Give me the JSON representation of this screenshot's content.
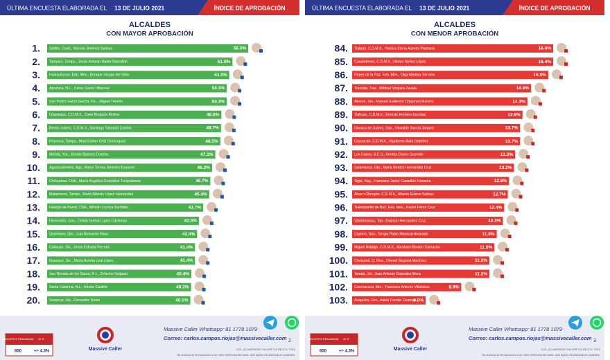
{
  "header": {
    "survey_label": "ÚLTIMA ENCUESTA ELABORADA EL",
    "date": "13 DE JULIO 2021",
    "index_label": "ÍNDICE DE APROBACIÓN"
  },
  "footer": {
    "surveys_label": "ENCUESTAS REALIZADAS",
    "surveys_value": "600",
    "margin_label": "M. E.",
    "margin_value": "+/- 4.3%",
    "brand": "Massive Caller",
    "whatsapp": "Massive Caller Whatsapp: 81 1778 1079",
    "email": "Correo: carlos.campos.riojas@massivecaller.com",
    "copyright": "D.R., (C) MASSIVE CALLER S.A DE C.V., 2021",
    "disclaimer": "Se autoriza la reproducción si se hace referencia del autor, sólo aplica vía electoral al contenido.",
    "pages": [
      "2",
      "3"
    ]
  },
  "chart_data": [
    {
      "type": "bar",
      "orientation": "horizontal",
      "title": "ALCALDES",
      "subtitle": "CON MAYOR APROBACIÓN",
      "color": "#4caf50",
      "ranks": [
        "1.",
        "2.",
        "3.",
        "4.",
        "5.",
        "6.",
        "7.",
        "8.",
        "9.",
        "10.",
        "11.",
        "12.",
        "13.",
        "14.",
        "15.",
        "16.",
        "17.",
        "18.",
        "19.",
        "20."
      ],
      "categories": [
        "Saltillo, Coah., Manolo Jiménez Salinas",
        "Tampico, Tamps., Jesús Antonio Nader Nasrallah",
        "Huixquilucan, Edo. Méx., Enrique Vargas del Villar",
        "Apodaca, N.L., César Garza Villarreal",
        "San Pedro Garza García, N.L., Miguel Treviño",
        "Iztapalapa, C.D.M.X., Clara Brugada Molina",
        "Benito Juárez, C.D.M.X., Santiago Taboada Cortina",
        "Reynosa, Tamps., Maki Esther Ortiz Domínguez",
        "Mérida, Yuc., Renán Barrera Concha",
        "Aguascalientes, Ags., María Teresa Jiménez Esquivel",
        "Chihuahua, Chih., María Angélica Granados Trespalacios",
        "Matamoros, Tamps., Mario Alberto López Hernández",
        "Hidalgo de Parral, Chih., Alfredo Lozoya Santillán",
        "Hermosillo, Son., Célida Teresa López Cárdenas",
        "Querétaro, Qro., Luis Bernardo Nava",
        "Culiacán, Sin., Jesús Estrada Ferreiro",
        "Guasave, Sin., María Aurelia Leal López",
        "San Nicolás de los Garza, N.L., Zeferino Salgado",
        "Santa Catarina, N.L., Héctor Castillo",
        "Veracruz, Ver., Fernando Yunes"
      ],
      "values": [
        56.3,
        51.9,
        51.0,
        50.3,
        50.3,
        48.8,
        48.7,
        48.5,
        47.1,
        46.2,
        45.7,
        45.4,
        43.7,
        42.5,
        42.0,
        41.4,
        41.4,
        40.4,
        40.3,
        40.1
      ],
      "value_labels": [
        "56.3%",
        "51.9%",
        "51.0%",
        "50.3%",
        "50.3%",
        "48.8%",
        "48.7%",
        "48.5%",
        "47.1%",
        "46.2%",
        "45.7%",
        "45.4%",
        "43.7%",
        "42.5%",
        "42.0%",
        "41.4%",
        "41.4%",
        "40.4%",
        "40.3%",
        "40.1%"
      ]
    },
    {
      "type": "bar",
      "orientation": "horizontal",
      "title": "ALCALDES",
      "subtitle": "CON MENOR APROBACIÓN",
      "color": "#e53935",
      "ranks": [
        "84.",
        "85.",
        "86.",
        "87.",
        "88.",
        "89.",
        "90.",
        "91.",
        "92.",
        "93.",
        "94.",
        "95.",
        "96.",
        "97.",
        "98.",
        "99.",
        "100.",
        "101.",
        "102.",
        "103."
      ],
      "categories": [
        "Tlalpan, C.D.M.X., Patricia Elena Aceves Pastrana",
        "Cuauhtémoc, C.D.M.X., Néstor Núñez López",
        "Reyes de la Paz, Edo. Méx., Olga Medina Serrano",
        "Tlaxcala, Tlax., Mildred Vergara Zavala",
        "Ahome, Sin., Manuel Guillermo Chapman Moreno",
        "Tláhuac, C.D.M.X., Ernesto Romero Escobar",
        "Oaxaca de Juárez, Oax., Oswaldo García Jarquín",
        "Coyoacán, C.D.M.X., Rigoberto Ávila Ordóñez",
        "Los Cabos, B.C.S., Armida Castro Guzmán",
        "Salamanca, Gto., María Beatriz Hernández Cruz",
        "Tepic, Nay., Francisco Javier Castellón Fonseca",
        "Álvaro Obregón, C.D.M.X., Alberto Esteva Salinas",
        "Tlalnepantla de Baz, Edo. Méx., Raciel Pérez Cruz",
        "Villahermosa, Tab., Evaristo Hernández Cruz",
        "Cajeme, Son., Sergio Pablo Mariscal Alvarado",
        "Miguel Hidalgo, C.D.M.X., Abraham Borden Camacho",
        "Chetumal, Q. Roo., Otoniel Segovia Martínez",
        "Tonalá, Jal., Juan Antonio González Mora",
        "Cuernavaca, Mor., Francisco Antonio Villalobos",
        "Acapulco, Gro., Adela Román Ocampo"
      ],
      "values": [
        16.4,
        16.4,
        16.0,
        14.6,
        14.3,
        13.9,
        13.7,
        13.7,
        13.3,
        13.2,
        12.8,
        12.7,
        12.4,
        12.3,
        11.8,
        11.6,
        11.2,
        11.2,
        8.9,
        6.0
      ],
      "value_labels": [
        "16.4%",
        "16.4%",
        "16.0%",
        "14.6%",
        "14.3%",
        "13.9%",
        "13.7%",
        "13.7%",
        "13.3%",
        "13.2%",
        "12.8%",
        "12.7%",
        "12.4%",
        "12.3%",
        "11.8%",
        "11.6%",
        "11.2%",
        "11.2%",
        "8.9%",
        "6.0%"
      ]
    }
  ]
}
